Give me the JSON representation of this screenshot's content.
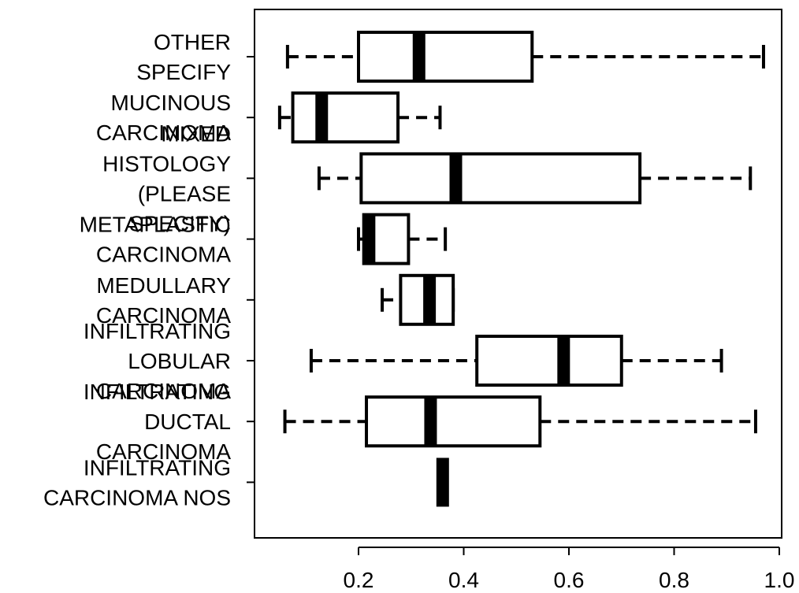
{
  "chart_data": {
    "type": "boxplot",
    "orientation": "horizontal",
    "title": "",
    "xlabel": "",
    "ylabel": "",
    "xlim": [
      0.2,
      1.0
    ],
    "x_ticks": [
      "0.2",
      "0.4",
      "0.6",
      "0.8",
      "1.0"
    ],
    "grid": false,
    "categories": [
      {
        "label": "OTHER\nSPECIFY",
        "whisker_low": 0.065,
        "q1": 0.2,
        "median": 0.315,
        "q3": 0.53,
        "whisker_high": 0.97
      },
      {
        "label": "MUCINOUS\nCARCINOMA",
        "whisker_low": 0.05,
        "q1": 0.075,
        "median": 0.13,
        "q3": 0.275,
        "whisker_high": 0.355
      },
      {
        "label": "MIXED\nHISTOLOGY\n(PLEASE\nSPECIFY)",
        "whisker_low": 0.125,
        "q1": 0.205,
        "median": 0.385,
        "q3": 0.735,
        "whisker_high": 0.945
      },
      {
        "label": "METAPLASTIC\nCARCINOMA",
        "whisker_low": 0.2,
        "q1": 0.21,
        "median": 0.22,
        "q3": 0.295,
        "whisker_high": 0.365
      },
      {
        "label": "MEDULLARY\nCARCINOMA",
        "whisker_low": 0.245,
        "q1": 0.28,
        "median": 0.335,
        "q3": 0.38,
        "whisker_high": 0.38
      },
      {
        "label": "INFILTRATING\nLOBULAR\nCARCINOMA",
        "whisker_low": 0.11,
        "q1": 0.425,
        "median": 0.59,
        "q3": 0.7,
        "whisker_high": 0.89
      },
      {
        "label": "INFILTRATING\nDUCTAL\nCARCINOMA",
        "whisker_low": 0.06,
        "q1": 0.215,
        "median": 0.337,
        "q3": 0.545,
        "whisker_high": 0.955
      },
      {
        "label": "INFILTRATING\nCARCINOMA NOS",
        "whisker_low": 0.36,
        "q1": 0.36,
        "median": 0.36,
        "q3": 0.36,
        "whisker_high": 0.36
      }
    ]
  }
}
